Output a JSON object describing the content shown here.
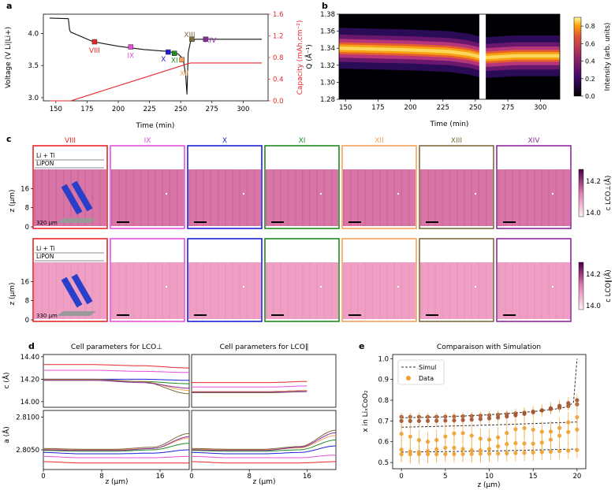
{
  "panel_labels": [
    "a",
    "b",
    "c",
    "d",
    "e"
  ],
  "colors": {
    "VIII": "#e8262b",
    "IX": "#e64fdc",
    "X": "#1f1fd6",
    "XI": "#1f8a1f",
    "XII": "#f2a25a",
    "XIII": "#7d6a3d",
    "XIV": "#8b2a9c",
    "capacity": "#e8262b",
    "voltage": "#111111",
    "sim": "#333333",
    "data": "#f0a030",
    "data_dark": "#a0522d"
  },
  "chart_data": [
    {
      "id": "a",
      "type": "line",
      "xlabel": "Time (min)",
      "ylabel": "Voltage (V Li|Li+)",
      "y2label": "Capacity (mAh.cm⁻²)",
      "xlim": [
        140,
        320
      ],
      "ylim": [
        2.95,
        4.3
      ],
      "y2lim": [
        0,
        1.6
      ],
      "xticks": [
        150,
        175,
        200,
        225,
        250,
        275,
        300
      ],
      "yticks": [
        3.0,
        3.5,
        4.0
      ],
      "y2ticks": [
        0.0,
        0.4,
        0.8,
        1.2,
        1.6
      ],
      "series": [
        {
          "color_key": "voltage",
          "axis": "y",
          "x": [
            145,
            160,
            161,
            162,
            180,
            200,
            220,
            240,
            248,
            252,
            254,
            255,
            256,
            258,
            262,
            280,
            300,
            315
          ],
          "y": [
            4.24,
            4.23,
            4.05,
            4.02,
            3.87,
            3.8,
            3.75,
            3.72,
            3.68,
            3.6,
            3.35,
            3.05,
            3.7,
            3.88,
            3.91,
            3.91,
            3.91,
            3.91
          ]
        },
        {
          "color_key": "capacity",
          "axis": "y2",
          "x": [
            145,
            162,
            255,
            258,
            315
          ],
          "y": [
            0.0,
            0.0,
            0.68,
            0.7,
            0.7
          ]
        }
      ],
      "markers": [
        {
          "label": "VIII",
          "x": 181,
          "y": 3.87
        },
        {
          "label": "IX",
          "x": 210,
          "y": 3.79
        },
        {
          "label": "X",
          "x": 240,
          "y": 3.71
        },
        {
          "label": "XI",
          "x": 245,
          "y": 3.69
        },
        {
          "label": "XII",
          "x": 251,
          "y": 3.59
        },
        {
          "label": "XIII",
          "x": 259,
          "y": 3.91
        },
        {
          "label": "XIV",
          "x": 270,
          "y": 3.91
        }
      ]
    },
    {
      "id": "b",
      "type": "heatmap",
      "xlabel": "Time (min)",
      "ylabel": "Q (Å⁻¹)",
      "colorbar_label": "Intensity (arb. units)",
      "xlim": [
        145,
        315
      ],
      "ylim": [
        1.28,
        1.38
      ],
      "xticks": [
        150,
        175,
        200,
        225,
        250,
        275,
        300
      ],
      "yticks": [
        1.28,
        1.3,
        1.32,
        1.34,
        1.36,
        1.38
      ],
      "cticks": [
        0.0,
        0.2,
        0.4,
        0.6,
        0.8
      ],
      "peak": {
        "x": [
          145,
          200,
          230,
          245,
          253,
          258,
          280,
          315
        ],
        "q": [
          1.34,
          1.338,
          1.336,
          1.333,
          1.33,
          1.329,
          1.331,
          1.331
        ]
      },
      "gap": [
        253,
        258
      ]
    },
    {
      "id": "c",
      "type": "heatmap",
      "ylabel": "z (μm)",
      "columns": [
        "VIII",
        "IX",
        "X",
        "XI",
        "XII",
        "XIII",
        "XIV"
      ],
      "zticks": [
        0,
        8,
        16
      ],
      "rows": [
        {
          "colorbar_label": "c LCO⊥(Å)",
          "cticks": [
            14.0,
            14.2
          ],
          "layers": [
            "Li + Ti",
            "LiPON"
          ],
          "scale": "320 μm"
        },
        {
          "colorbar_label": "c LCO∥(Å)",
          "cticks": [
            14.0,
            14.2
          ],
          "layers": [
            "Li + Ti",
            "LiPON"
          ],
          "scale": "330 μm"
        }
      ]
    },
    {
      "id": "d",
      "type": "line",
      "titles": [
        "Cell parameters for LCO⊥",
        "Cell parameters for LCO∥"
      ],
      "xlabel": "z (μm)",
      "xticks": [
        0,
        8,
        16
      ],
      "xlim": [
        0,
        20
      ],
      "top": {
        "ylabel": "c (Å)",
        "ylim": [
          13.95,
          14.42
        ],
        "yticks": [
          14.0,
          14.2,
          14.4
        ]
      },
      "bottom": {
        "ylabel": "a (Å)",
        "ylim": [
          2.802,
          2.811
        ],
        "yticks": [
          2.805,
          2.81
        ]
      },
      "c_perp": [
        {
          "key": "VIII",
          "v": [
            14.33,
            14.33,
            14.32,
            14.3
          ]
        },
        {
          "key": "IX",
          "v": [
            14.28,
            14.28,
            14.27,
            14.26
          ]
        },
        {
          "key": "X",
          "v": [
            14.2,
            14.2,
            14.2,
            14.19
          ]
        },
        {
          "key": "XI",
          "v": [
            14.19,
            14.19,
            14.18,
            14.16
          ]
        },
        {
          "key": "XII",
          "v": [
            14.195,
            14.195,
            14.18,
            14.1
          ]
        },
        {
          "key": "XIII",
          "v": [
            14.2,
            14.2,
            14.18,
            14.07
          ]
        },
        {
          "key": "XIV",
          "v": [
            14.19,
            14.19,
            14.17,
            14.12
          ]
        }
      ],
      "c_par": [
        {
          "key": "VIII",
          "v": [
            14.17,
            14.17,
            14.17,
            14.18
          ]
        },
        {
          "key": "IX",
          "v": [
            14.13,
            14.13,
            14.13,
            14.14
          ]
        },
        {
          "key": "X",
          "v": [
            14.09,
            14.09,
            14.09,
            14.1
          ]
        },
        {
          "key": "XI",
          "v": [
            14.085,
            14.085,
            14.085,
            14.09
          ]
        },
        {
          "key": "XII",
          "v": [
            14.09,
            14.09,
            14.09,
            14.1
          ]
        },
        {
          "key": "XIII",
          "v": [
            14.08,
            14.08,
            14.08,
            14.09
          ]
        },
        {
          "key": "XIV",
          "v": [
            14.085,
            14.085,
            14.085,
            14.09
          ]
        }
      ],
      "a_perp": [
        {
          "key": "VIII",
          "v": [
            2.8032,
            2.803,
            2.803,
            2.803,
            2.803
          ]
        },
        {
          "key": "IX",
          "v": [
            2.804,
            2.8038,
            2.8038,
            2.8038,
            2.804
          ]
        },
        {
          "key": "X",
          "v": [
            2.8046,
            2.8044,
            2.8044,
            2.8045,
            2.805
          ]
        },
        {
          "key": "XI",
          "v": [
            2.8049,
            2.8048,
            2.8048,
            2.805,
            2.806
          ]
        },
        {
          "key": "XII",
          "v": [
            2.8051,
            2.805,
            2.805,
            2.8052,
            2.8068
          ]
        },
        {
          "key": "XIII",
          "v": [
            2.8052,
            2.8051,
            2.8051,
            2.8054,
            2.8075
          ]
        },
        {
          "key": "XIV",
          "v": [
            2.805,
            2.8049,
            2.8049,
            2.8052,
            2.807
          ]
        }
      ],
      "a_par": [
        {
          "key": "VIII",
          "v": [
            2.8032,
            2.803,
            2.803,
            2.803,
            2.8032
          ]
        },
        {
          "key": "IX",
          "v": [
            2.804,
            2.8038,
            2.8038,
            2.8038,
            2.8042
          ]
        },
        {
          "key": "X",
          "v": [
            2.8046,
            2.8044,
            2.8044,
            2.8046,
            2.8056
          ]
        },
        {
          "key": "XI",
          "v": [
            2.8049,
            2.8048,
            2.8048,
            2.805,
            2.8065
          ]
        },
        {
          "key": "XII",
          "v": [
            2.8051,
            2.805,
            2.805,
            2.8053,
            2.8072
          ]
        },
        {
          "key": "XIII",
          "v": [
            2.8052,
            2.8051,
            2.8051,
            2.8055,
            2.808
          ]
        },
        {
          "key": "XIV",
          "v": [
            2.805,
            2.8049,
            2.8049,
            2.8054,
            2.8076
          ]
        }
      ]
    },
    {
      "id": "e",
      "type": "scatter",
      "title": "Comparaison with Simulation",
      "xlabel": "z (μm)",
      "ylabel": "x in LiₓCoO₂",
      "xlim": [
        -1,
        21
      ],
      "ylim": [
        0.47,
        1.02
      ],
      "xticks": [
        0,
        5,
        10,
        15,
        20
      ],
      "yticks": [
        0.5,
        0.6,
        0.7,
        0.8,
        0.9,
        1.0
      ],
      "legend": {
        "placement": "top-left",
        "entries": [
          "Simul",
          "Data"
        ]
      },
      "simul": [
        {
          "z": [
            0,
            5,
            10,
            15,
            18,
            19,
            19.6,
            20
          ],
          "x": [
            0.715,
            0.72,
            0.73,
            0.745,
            0.76,
            0.77,
            0.79,
            1.0
          ]
        },
        {
          "z": [
            0,
            10,
            20
          ],
          "x": [
            0.67,
            0.68,
            0.695
          ]
        },
        {
          "z": [
            0,
            10,
            20
          ],
          "x": [
            0.55,
            0.555,
            0.565
          ]
        }
      ],
      "data_series": [
        {
          "x_start": 0.72,
          "x_end": 0.78,
          "err": 0.02,
          "dark": true
        },
        {
          "x_start": 0.7,
          "x_end": 0.8,
          "err": 0.03,
          "dark": true
        },
        {
          "x_start": 0.62,
          "x_end": 0.7,
          "err": 0.05,
          "wave": 0.04,
          "dark": false
        },
        {
          "x_start": 0.56,
          "x_end": 0.65,
          "err": 0.06,
          "wave": 0.02,
          "dark": false
        },
        {
          "x_start": 0.54,
          "x_end": 0.56,
          "err": 0.04,
          "dark": false
        }
      ]
    }
  ]
}
